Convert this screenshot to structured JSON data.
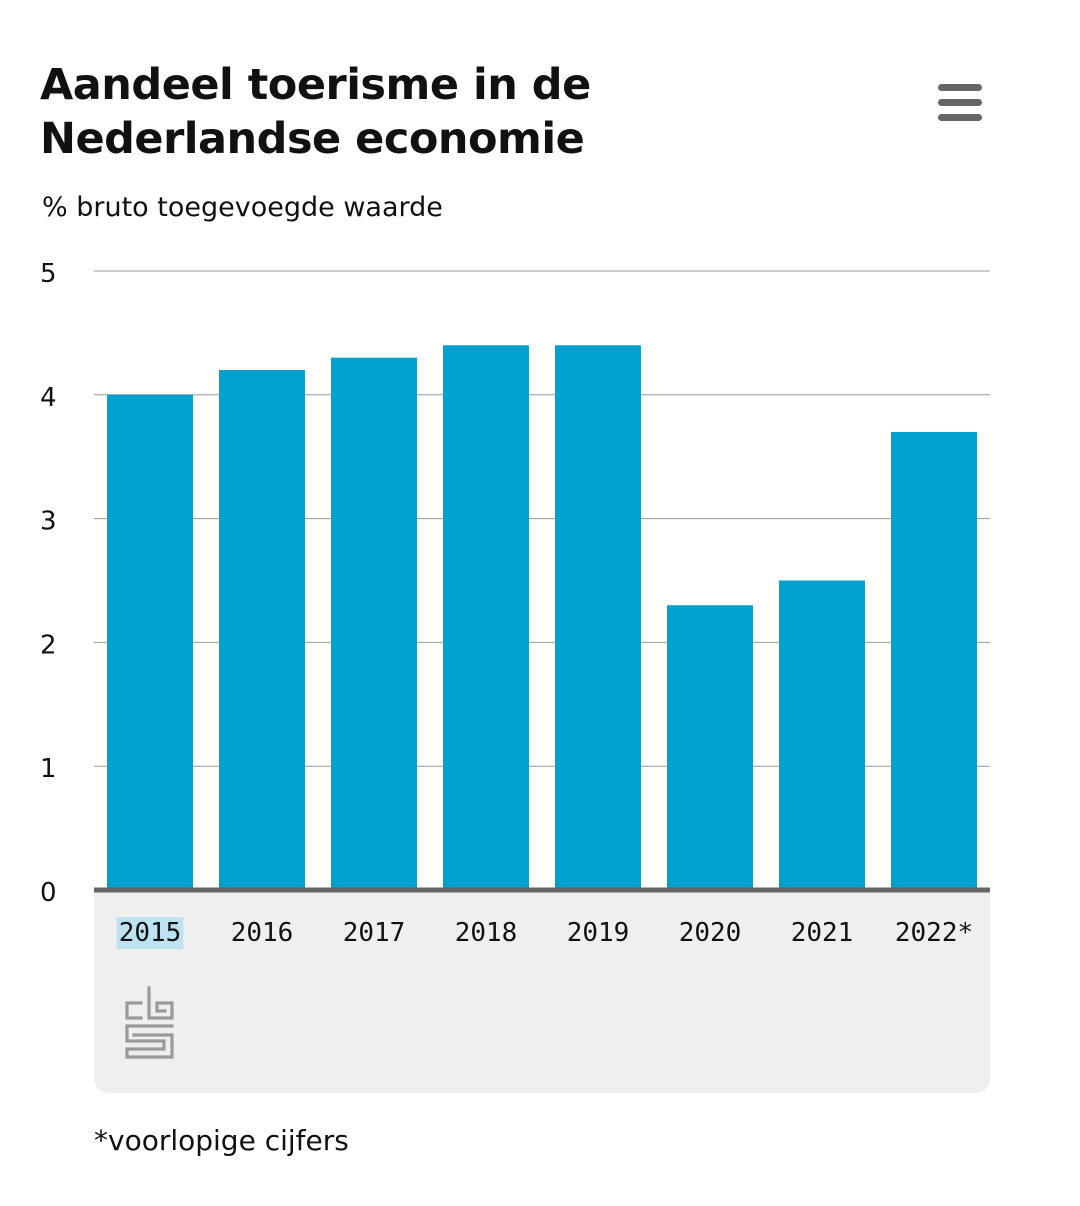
{
  "header": {
    "title": "Aandeel toerisme in de Nederlandse economie",
    "subtitle": "% bruto toegevoegde waarde",
    "menu_icon": "hamburger-menu-icon"
  },
  "footnote": "*voorlopige cijfers",
  "source_logo": "cbs-logo",
  "colors": {
    "bar": "#00A1CD",
    "grid": "#999999",
    "axis": "#666666",
    "footer_bg": "#EFEFEF",
    "highlight": "#BDE3F2",
    "logo": "#9a9a9a"
  },
  "chart_data": {
    "type": "bar",
    "title": "Aandeel toerisme in de Nederlandse economie",
    "ylabel": "% bruto toegevoegde waarde",
    "xlabel": "",
    "categories": [
      "2015",
      "2016",
      "2017",
      "2018",
      "2019",
      "2020",
      "2021",
      "2022*"
    ],
    "values": [
      4.0,
      4.2,
      4.3,
      4.4,
      4.4,
      2.3,
      2.5,
      3.7
    ],
    "ylim": [
      0,
      5
    ],
    "yticks": [
      "0",
      "1",
      "2",
      "3",
      "4",
      "5"
    ],
    "grid": true,
    "highlighted_category": "2015"
  }
}
